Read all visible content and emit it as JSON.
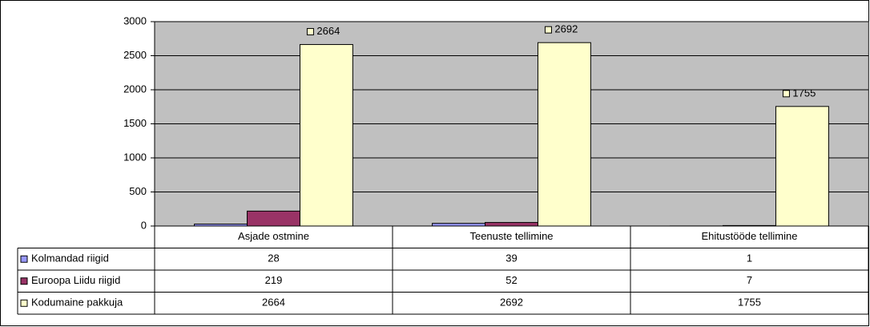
{
  "chart_data": {
    "type": "bar",
    "categories": [
      "Asjade ostmine",
      "Teenuste tellimine",
      "Ehitustööde tellimine"
    ],
    "series": [
      {
        "name": "Kolmandad riigid",
        "color": "#9999ff",
        "values": [
          28,
          39,
          1
        ]
      },
      {
        "name": "Euroopa Liidu riigid",
        "color": "#993366",
        "values": [
          219,
          52,
          7
        ]
      },
      {
        "name": "Kodumaine pakkuja",
        "color": "#ffffcc",
        "values": [
          2664,
          2692,
          1755
        ],
        "show_labels": true
      }
    ],
    "ylim": [
      0,
      3000
    ],
    "yticks": [
      0,
      500,
      1000,
      1500,
      2000,
      2500,
      3000
    ],
    "grid": true,
    "plot_background": "#c0c0c0",
    "data_table": true
  }
}
